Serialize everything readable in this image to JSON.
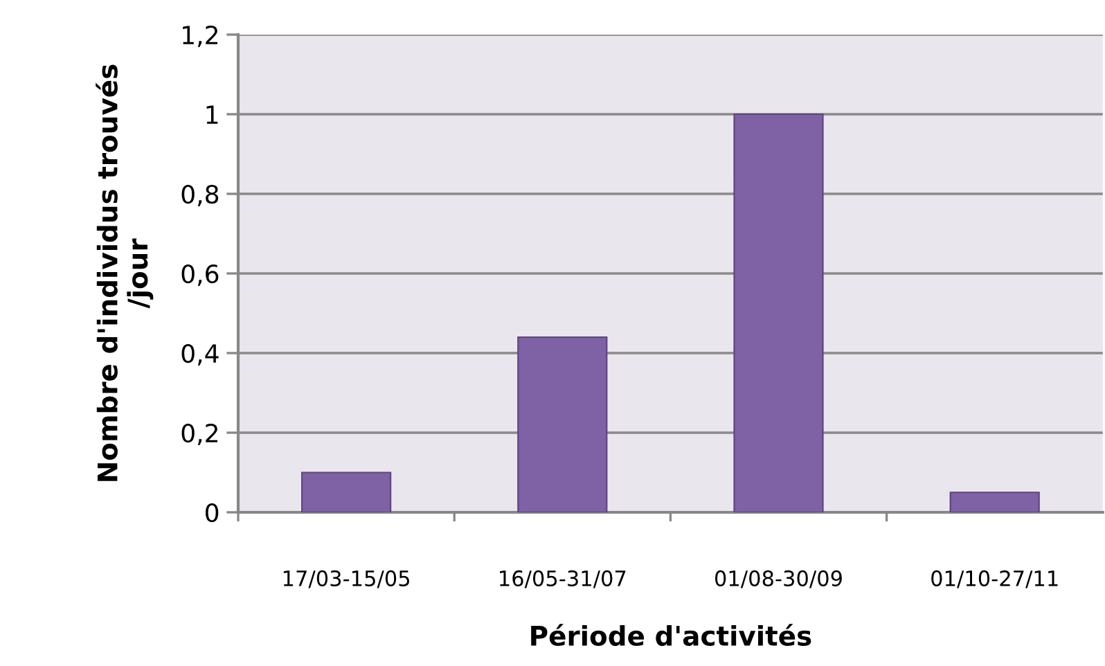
{
  "chart_data": {
    "type": "bar",
    "xlabel": "Période d'activités",
    "ylabel": "Nombre d'individus trouvés\n/jour",
    "categories": [
      "17/03-15/05",
      "16/05-31/07",
      "01/08-30/09",
      "01/10-27/11"
    ],
    "values": [
      0.1,
      0.44,
      1,
      0.05
    ],
    "color": "#7f62a6",
    "ylim": [
      0,
      1.2
    ],
    "yticks": [
      {
        "value": 0,
        "label": "0"
      },
      {
        "value": 0.2,
        "label": "0,2"
      },
      {
        "value": 0.4,
        "label": "0,4"
      },
      {
        "value": 0.6,
        "label": "0,6"
      },
      {
        "value": 0.8,
        "label": "0,8"
      },
      {
        "value": 1,
        "label": "1"
      },
      {
        "value": 1.2,
        "label": "1,2"
      }
    ],
    "grid": "y",
    "legend": false
  }
}
